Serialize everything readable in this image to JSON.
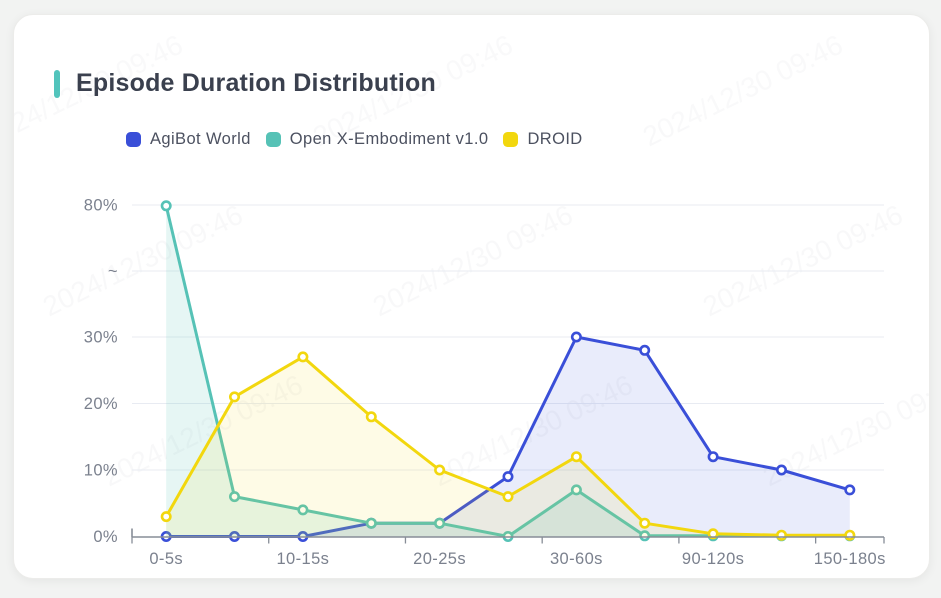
{
  "page": {
    "background": "#f2f3f2",
    "watermark_text": "2024/12/30 09:46"
  },
  "card": {
    "background": "#ffffff",
    "accent_color": "#52c4bc"
  },
  "title": "Episode Duration Distribution",
  "legend": [
    {
      "label": "AgiBot World",
      "color": "#3a4fd8"
    },
    {
      "label": "Open X-Embodiment v1.0",
      "color": "#56c2b6"
    },
    {
      "label": "DROID",
      "color": "#f2d70e"
    }
  ],
  "chart_data": {
    "type": "line",
    "title": "Episode Duration Distribution",
    "n_points": 11,
    "x_tick_labels": [
      "0-5s",
      "10-15s",
      "20-25s",
      "30-60s",
      "90-120s",
      "150-180s"
    ],
    "x_tick_label_point_indices": [
      0,
      2,
      4,
      6,
      8,
      10
    ],
    "y_ticks": [
      {
        "label": "0%",
        "value": 0
      },
      {
        "label": "10%",
        "value": 10
      },
      {
        "label": "20%",
        "value": 20
      },
      {
        "label": "30%",
        "value": 30
      },
      {
        "label": "~",
        "value": "break"
      },
      {
        "label": "80%",
        "value": 80
      }
    ],
    "y_axis_break": {
      "from": 30,
      "to": 80,
      "symbol": "~"
    },
    "series": [
      {
        "name": "AgiBot World",
        "color": "#3a4fd8",
        "values": [
          0,
          0,
          0,
          2,
          2,
          9,
          30,
          28,
          12,
          10,
          7
        ]
      },
      {
        "name": "Open X-Embodiment v1.0",
        "color": "#56c2b6",
        "values": [
          79.7,
          6,
          4,
          2,
          2,
          0,
          7,
          0.1,
          0.1,
          0.1,
          0.1
        ]
      },
      {
        "name": "DROID",
        "color": "#f2d70e",
        "values": [
          3,
          21,
          27,
          18,
          10,
          6,
          12,
          2,
          0.4,
          0.2,
          0.2
        ]
      }
    ],
    "grid": true,
    "legend_position": "top-left",
    "marker": "hollow-circle",
    "area_fill": true
  }
}
